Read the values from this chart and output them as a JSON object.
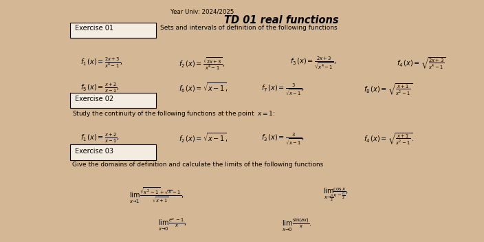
{
  "bg_color": "#d4b896",
  "paper_color": "#f2ede0",
  "title": "TD 01 real functions",
  "year": "Year Univ: 2024/2025",
  "ex1_label": "Exercise 01",
  "ex1_desc": "Sets and intervals of definition of the following functions",
  "ex2_label": "Exercise 02",
  "ex2_desc": "Study the continuity of the following functions at the point",
  "ex3_label": "Exercise 03",
  "ex3_desc": "Give the domains of definition and calculate the limits of the following functions"
}
